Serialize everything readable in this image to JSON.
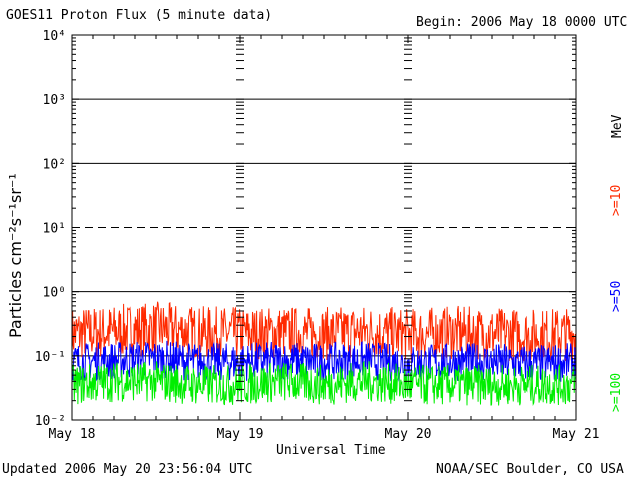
{
  "header": {
    "title": "GOES11 Proton Flux (5 minute data)",
    "begin": "Begin: 2006 May 18 0000 UTC"
  },
  "footer": {
    "updated": "Updated 2006 May 20 23:56:04 UTC",
    "source": "NOAA/SEC Boulder, CO USA"
  },
  "chart_data": {
    "type": "line",
    "title": "GOES11 Proton Flux (5 minute data)",
    "xlabel": "Universal Time",
    "ylabel": "Particles cm⁻²s⁻¹sr⁻¹",
    "yscale": "log",
    "ylim": [
      0.01,
      10000
    ],
    "y_tick_labels": [
      "10⁻²",
      "10⁻¹",
      "10⁰",
      "10¹",
      "10²",
      "10³",
      "10⁴"
    ],
    "x_tick_labels": [
      "May 18",
      "May 19",
      "May 20",
      "May 21"
    ],
    "x_range_days": [
      0,
      3
    ],
    "legend_unit": "MeV",
    "dashed_threshold": 10,
    "series": [
      {
        "name": ">=10",
        "color": "#ff2a00",
        "x": [
          0,
          0.25,
          0.5,
          0.75,
          1,
          1.25,
          1.5,
          1.75,
          2,
          2.25,
          2.5,
          2.75,
          3
        ],
        "values": [
          0.22,
          0.24,
          0.27,
          0.23,
          0.22,
          0.23,
          0.22,
          0.24,
          0.21,
          0.23,
          0.22,
          0.21,
          0.22
        ]
      },
      {
        "name": ">=50",
        "color": "#0000ff",
        "x": [
          0,
          0.25,
          0.5,
          0.75,
          1,
          1.25,
          1.5,
          1.75,
          2,
          2.25,
          2.5,
          2.75,
          3
        ],
        "values": [
          0.08,
          0.085,
          0.09,
          0.08,
          0.08,
          0.085,
          0.08,
          0.085,
          0.075,
          0.08,
          0.08,
          0.075,
          0.08
        ]
      },
      {
        "name": ">=100",
        "color": "#00ee00",
        "x": [
          0,
          0.25,
          0.5,
          0.75,
          1,
          1.25,
          1.5,
          1.75,
          2,
          2.25,
          2.5,
          2.75,
          3
        ],
        "values": [
          0.035,
          0.04,
          0.04,
          0.035,
          0.035,
          0.04,
          0.035,
          0.04,
          0.035,
          0.035,
          0.035,
          0.035,
          0.035
        ]
      }
    ]
  }
}
